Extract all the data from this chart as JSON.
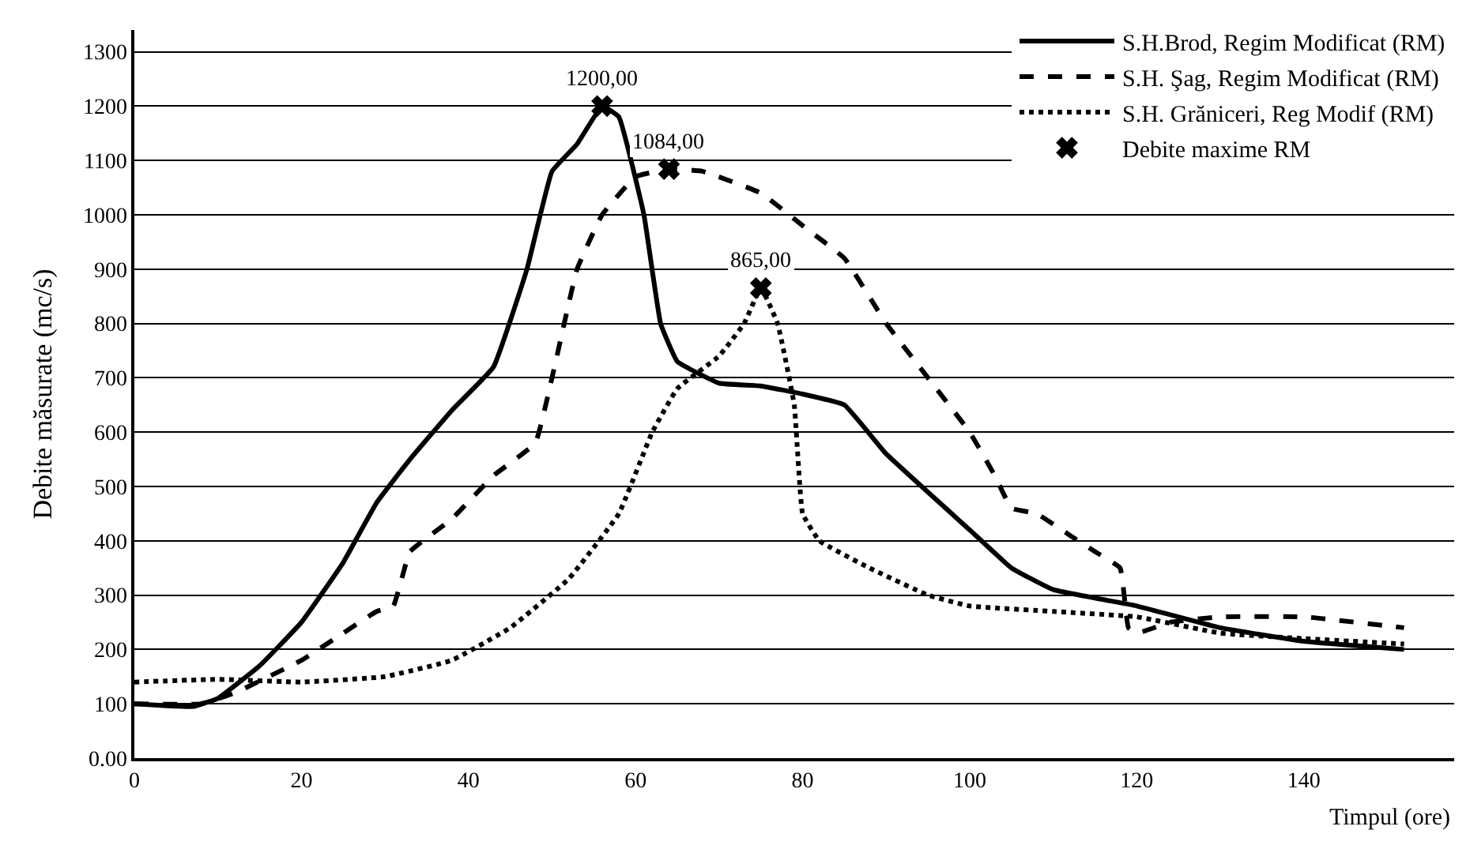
{
  "chart_data": {
    "type": "line",
    "xlabel": "Timpul (ore)",
    "ylabel": "Debite măsurate (mc/s)",
    "xlim": [
      0,
      158
    ],
    "xticks": [
      0,
      20,
      40,
      60,
      80,
      100,
      120,
      140
    ],
    "ylim": [
      0,
      1340
    ],
    "yticks": [
      {
        "value": 0,
        "label": "0.00"
      },
      100,
      200,
      300,
      400,
      500,
      600,
      700,
      800,
      900,
      1000,
      1100,
      1200,
      1300
    ],
    "grid": "y",
    "legend": "top right",
    "series": [
      {
        "name": "S.H.Brod, Regim Modificat (RM)",
        "color": "#000000",
        "line_style": "solid",
        "x": [
          0,
          7,
          10,
          15,
          20,
          25,
          29,
          33,
          38,
          43,
          47,
          50,
          53,
          56,
          58,
          61,
          63,
          65,
          70,
          75,
          80,
          85,
          90,
          100,
          105,
          110,
          120,
          130,
          140,
          152
        ],
        "values": [
          100,
          95,
          110,
          170,
          250,
          360,
          470,
          550,
          640,
          720,
          900,
          1080,
          1130,
          1200,
          1180,
          1000,
          800,
          730,
          690,
          685,
          670,
          650,
          560,
          420,
          350,
          310,
          280,
          240,
          215,
          200
        ]
      },
      {
        "name": "S.H. Şag, Regim Modificat (RM)",
        "color": "#000000",
        "line_style": "dashed",
        "x": [
          0,
          8,
          12,
          20,
          25,
          29,
          31,
          33,
          38,
          43,
          48,
          50,
          53,
          56,
          60,
          64,
          68,
          75,
          80,
          85,
          90,
          95,
          100,
          103,
          105,
          108,
          112,
          115,
          118,
          119,
          120,
          124,
          130,
          140,
          152
        ],
        "values": [
          100,
          100,
          120,
          180,
          230,
          270,
          280,
          380,
          440,
          520,
          580,
          700,
          900,
          1000,
          1070,
          1084,
          1080,
          1040,
          980,
          920,
          800,
          700,
          600,
          520,
          460,
          450,
          410,
          380,
          350,
          240,
          230,
          250,
          260,
          260,
          240
        ]
      },
      {
        "name": "S.H. Grăniceri, Reg Modif (RM)",
        "color": "#000000",
        "line_style": "dotted",
        "x": [
          0,
          10,
          20,
          30,
          38,
          45,
          52,
          58,
          62,
          65,
          70,
          73,
          75,
          77,
          79,
          80,
          82,
          88,
          95,
          100,
          110,
          120,
          130,
          140,
          152
        ],
        "values": [
          140,
          145,
          140,
          150,
          180,
          240,
          330,
          450,
          600,
          680,
          740,
          800,
          865,
          800,
          650,
          450,
          400,
          350,
          300,
          280,
          270,
          260,
          230,
          220,
          210
        ]
      },
      {
        "name": "Debite maxime RM",
        "type": "scatter",
        "marker": "cross",
        "color": "#000000",
        "x": [
          56,
          64,
          75
        ],
        "values": [
          1200,
          1084,
          865
        ],
        "value_labels": [
          "1200,00",
          "1084,00",
          "865,00"
        ]
      }
    ]
  }
}
